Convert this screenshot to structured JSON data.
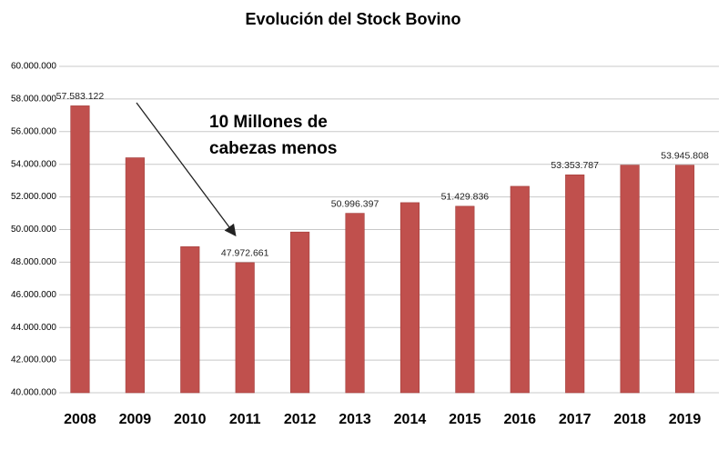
{
  "chart_data": {
    "type": "bar",
    "title": "Evolución del Stock Bovino",
    "annotation": [
      "10 Millones de",
      "cabezas menos"
    ],
    "categories": [
      "2008",
      "2009",
      "2010",
      "2011",
      "2012",
      "2013",
      "2014",
      "2015",
      "2016",
      "2017",
      "2018",
      "2019"
    ],
    "values": [
      57583122,
      54400000,
      48950000,
      47972661,
      49850000,
      50996397,
      51650000,
      51429836,
      52650000,
      53353787,
      53950000,
      53945808
    ],
    "value_labels": [
      "57.583.122",
      null,
      null,
      "47.972.661",
      null,
      "50.996.397",
      null,
      "51.429.836",
      null,
      "53.353.787",
      null,
      "53.945.808"
    ],
    "color": "#c0504d",
    "ylim": [
      40000000,
      60000000
    ],
    "yticks": [
      {
        "value": 40000000,
        "label": "40.000.000"
      },
      {
        "value": 42000000,
        "label": "42.000.000"
      },
      {
        "value": 44000000,
        "label": "44.000.000"
      },
      {
        "value": 46000000,
        "label": "46.000.000"
      },
      {
        "value": 48000000,
        "label": "48.000.000"
      },
      {
        "value": 50000000,
        "label": "50.000.000"
      },
      {
        "value": 52000000,
        "label": "52.000.000"
      },
      {
        "value": 54000000,
        "label": "54.000.000"
      },
      {
        "value": 56000000,
        "label": "56.000.000"
      },
      {
        "value": 58000000,
        "label": "58.000.000"
      },
      {
        "value": 60000000,
        "label": "60.000.000"
      }
    ],
    "grid": true
  }
}
